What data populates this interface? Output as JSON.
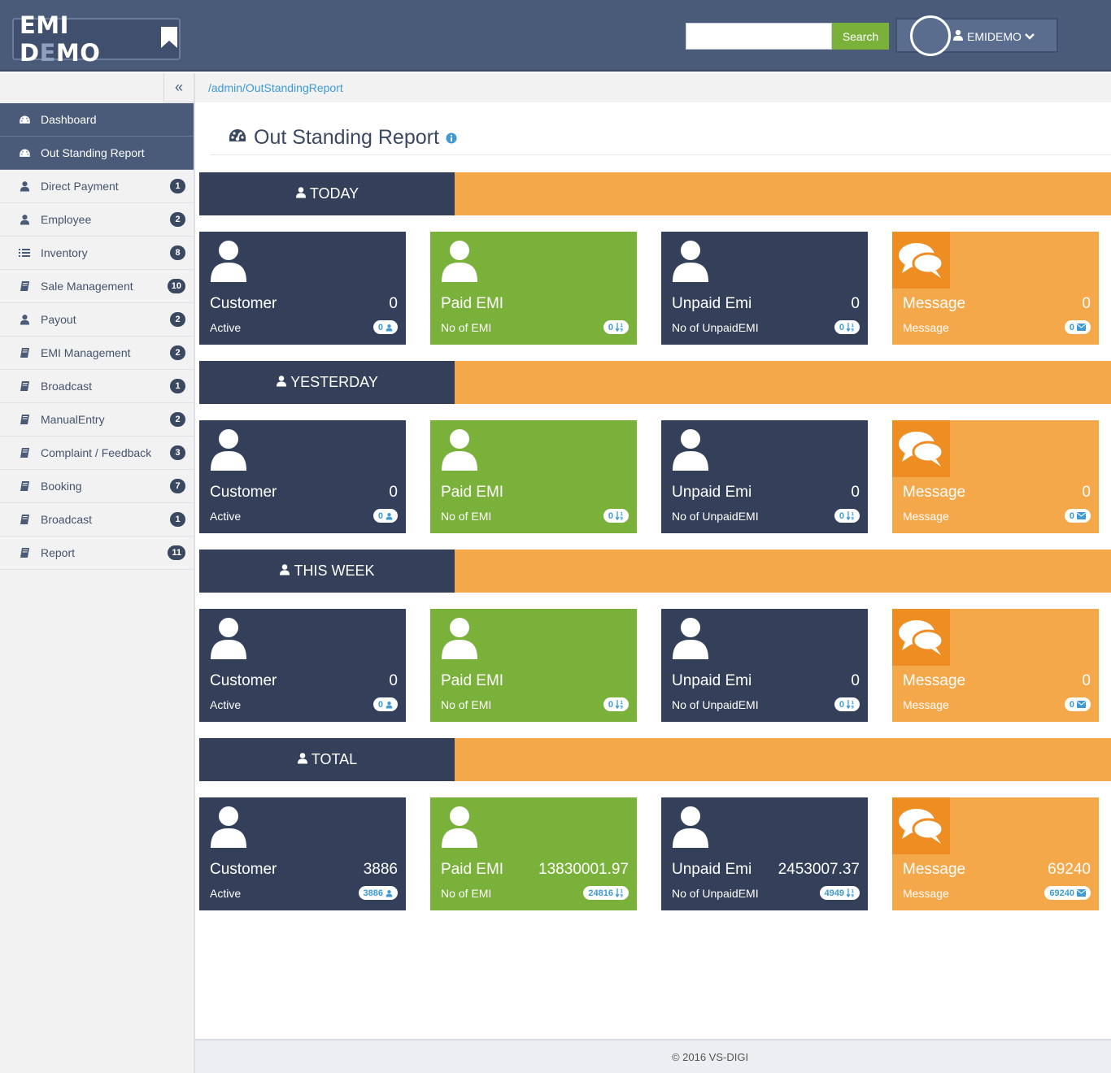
{
  "header": {
    "logo_main": "EMI D",
    "logo_dim": "E",
    "logo_end": "MO",
    "search_placeholder": "",
    "search_label": "Search",
    "user_name": "EMIDEMO"
  },
  "sidebar": {
    "items": [
      {
        "label": "Dashboard",
        "badge": "",
        "icon": "dashboard-icon",
        "active": true
      },
      {
        "label": "Out Standing Report",
        "badge": "",
        "icon": "dashboard-icon",
        "active": true
      },
      {
        "label": "Direct Payment",
        "badge": "1",
        "icon": "user-icon"
      },
      {
        "label": "Employee",
        "badge": "2",
        "icon": "user-icon"
      },
      {
        "label": "Inventory",
        "badge": "8",
        "icon": "list-icon"
      },
      {
        "label": "Sale Management",
        "badge": "10",
        "icon": "book-icon"
      },
      {
        "label": "Payout",
        "badge": "2",
        "icon": "user-icon"
      },
      {
        "label": "EMI Management",
        "badge": "2",
        "icon": "book-icon"
      },
      {
        "label": "Broadcast",
        "badge": "1",
        "icon": "book-icon"
      },
      {
        "label": "ManualEntry",
        "badge": "2",
        "icon": "book-icon"
      },
      {
        "label": "Complaint / Feedback",
        "badge": "3",
        "icon": "book-icon"
      },
      {
        "label": "Booking",
        "badge": "7",
        "icon": "book-icon"
      },
      {
        "label": "Broadcast",
        "badge": "1",
        "icon": "book-icon"
      },
      {
        "label": "Report",
        "badge": "11",
        "icon": "book-icon"
      }
    ]
  },
  "breadcrumb": "/admin/OutStandingReport",
  "page_title": "Out Standing Report",
  "sections": [
    {
      "label": "TODAY",
      "cards": {
        "customer": {
          "title": "Customer",
          "value": "0",
          "sub": "Active",
          "badge": "0"
        },
        "paid": {
          "title": "Paid EMI",
          "value": "",
          "sub": "No of EMI",
          "badge": "0"
        },
        "unpaid": {
          "title": "Unpaid Emi",
          "value": "0",
          "sub": "No of UnpaidEMI",
          "badge": "0"
        },
        "message": {
          "title": "Message",
          "value": "0",
          "sub": "Message",
          "badge": "0"
        }
      }
    },
    {
      "label": "YESTERDAY",
      "cards": {
        "customer": {
          "title": "Customer",
          "value": "0",
          "sub": "Active",
          "badge": "0"
        },
        "paid": {
          "title": "Paid EMI",
          "value": "",
          "sub": "No of EMI",
          "badge": "0"
        },
        "unpaid": {
          "title": "Unpaid Emi",
          "value": "0",
          "sub": "No of UnpaidEMI",
          "badge": "0"
        },
        "message": {
          "title": "Message",
          "value": "0",
          "sub": "Message",
          "badge": "0"
        }
      }
    },
    {
      "label": "THIS WEEK",
      "cards": {
        "customer": {
          "title": "Customer",
          "value": "0",
          "sub": "Active",
          "badge": "0"
        },
        "paid": {
          "title": "Paid EMI",
          "value": "",
          "sub": "No of EMI",
          "badge": "0"
        },
        "unpaid": {
          "title": "Unpaid Emi",
          "value": "0",
          "sub": "No of UnpaidEMI",
          "badge": "0"
        },
        "message": {
          "title": "Message",
          "value": "0",
          "sub": "Message",
          "badge": "0"
        }
      }
    },
    {
      "label": "TOTAL",
      "cards": {
        "customer": {
          "title": "Customer",
          "value": "3886",
          "sub": "Active",
          "badge": "3886"
        },
        "paid": {
          "title": "Paid EMI",
          "value": "13830001.97",
          "sub": "No of EMI",
          "badge": "24816"
        },
        "unpaid": {
          "title": "Unpaid Emi",
          "value": "2453007.37",
          "sub": "No of UnpaidEMI",
          "badge": "4949"
        },
        "message": {
          "title": "Message",
          "value": "69240",
          "sub": "Message",
          "badge": "69240"
        }
      }
    }
  ],
  "footer": "© 2016 VS-DIGI",
  "colors": {
    "header": "#4a5b7a",
    "navy": "#34405a",
    "green": "#79b13a",
    "orange": "#f5a84a",
    "orange_dark": "#ee8d22",
    "link": "#3d9ad6"
  }
}
